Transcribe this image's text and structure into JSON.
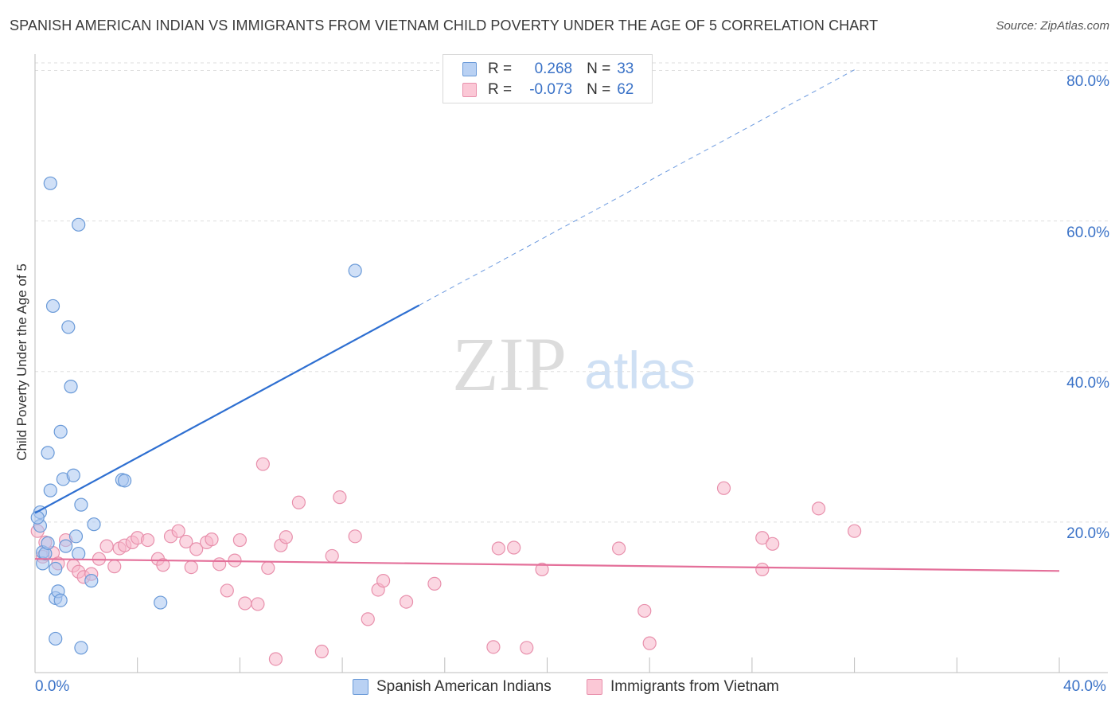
{
  "title": "SPANISH AMERICAN INDIAN VS IMMIGRANTS FROM VIETNAM CHILD POVERTY UNDER THE AGE OF 5 CORRELATION CHART",
  "source": "Source: ZipAtlas.com",
  "watermark": {
    "zip": "ZIP",
    "atlas": "atlas"
  },
  "colors": {
    "blue_fill": "#a9c6f0",
    "blue_stroke": "#6a9ad8",
    "blue_line": "#2e6fd1",
    "pink_fill": "#f7b7ca",
    "pink_stroke": "#e890ac",
    "pink_line": "#e4709a",
    "tick_text": "#3a72c7",
    "grid": "#dedede"
  },
  "legend": {
    "rows": [
      {
        "r_label": "R =",
        "r_value": "0.268",
        "n_label": "N =",
        "n_value": "33"
      },
      {
        "r_label": "R =",
        "r_value": "-0.073",
        "n_label": "N =",
        "n_value": "62"
      }
    ]
  },
  "chart_data": {
    "type": "scatter",
    "title": "SPANISH AMERICAN INDIAN VS IMMIGRANTS FROM VIETNAM CHILD POVERTY UNDER THE AGE OF 5 CORRELATION CHART",
    "xlabel": "",
    "ylabel": "Child Poverty Under the Age of 5",
    "xlim": [
      0,
      40
    ],
    "ylim": [
      0,
      81
    ],
    "x_tick_labels": [
      "0.0%",
      "40.0%"
    ],
    "y_ticks": [
      20,
      40,
      60,
      80
    ],
    "y_tick_labels": [
      "20.0%",
      "40.0%",
      "60.0%",
      "80.0%"
    ],
    "grid": true,
    "legend_position": "top-center",
    "series": [
      {
        "name": "Spanish American Indians",
        "color": "#a9c6f0",
        "trend": {
          "x_start": 0,
          "y_start": 21.2,
          "x_solid_end": 15,
          "x_dashed_end": 32,
          "slope": 1.84
        },
        "points": [
          [
            0.2,
            19.5
          ],
          [
            0.2,
            21.3
          ],
          [
            0.3,
            16
          ],
          [
            0.3,
            14.5
          ],
          [
            0.4,
            15.8
          ],
          [
            0.5,
            17.2
          ],
          [
            0.5,
            29.2
          ],
          [
            0.6,
            24.2
          ],
          [
            0.6,
            65
          ],
          [
            0.7,
            48.7
          ],
          [
            0.8,
            4.5
          ],
          [
            0.8,
            9.9
          ],
          [
            0.8,
            13.8
          ],
          [
            0.9,
            10.8
          ],
          [
            1.0,
            32
          ],
          [
            1.0,
            9.6
          ],
          [
            1.1,
            25.7
          ],
          [
            1.2,
            16.8
          ],
          [
            1.3,
            45.9
          ],
          [
            1.4,
            38
          ],
          [
            1.5,
            26.2
          ],
          [
            1.6,
            18.1
          ],
          [
            1.7,
            59.5
          ],
          [
            1.7,
            15.8
          ],
          [
            1.8,
            3.3
          ],
          [
            1.8,
            22.3
          ],
          [
            2.2,
            12.2
          ],
          [
            2.3,
            19.7
          ],
          [
            3.4,
            25.6
          ],
          [
            3.5,
            25.5
          ],
          [
            4.9,
            9.3
          ],
          [
            12.5,
            53.4
          ],
          [
            0.1,
            20.6
          ]
        ]
      },
      {
        "name": "Immigrants from Vietnam",
        "color": "#f7b7ca",
        "trend": {
          "x_start": 0,
          "y_start": 15.1,
          "x_end": 40,
          "y_end": 13.5
        },
        "points": [
          [
            0.1,
            18.8
          ],
          [
            0.4,
            17.3
          ],
          [
            0.7,
            15.9
          ],
          [
            0.9,
            14.5
          ],
          [
            1.2,
            17.6
          ],
          [
            1.5,
            14.2
          ],
          [
            1.7,
            13.4
          ],
          [
            1.9,
            12.7
          ],
          [
            2.2,
            13.1
          ],
          [
            2.5,
            15.1
          ],
          [
            2.8,
            16.8
          ],
          [
            3.1,
            14.1
          ],
          [
            3.3,
            16.5
          ],
          [
            3.5,
            16.9
          ],
          [
            3.8,
            17.3
          ],
          [
            4.0,
            17.9
          ],
          [
            4.4,
            17.6
          ],
          [
            4.8,
            15.1
          ],
          [
            5.0,
            14.3
          ],
          [
            5.3,
            18.1
          ],
          [
            5.6,
            18.8
          ],
          [
            5.9,
            17.4
          ],
          [
            6.1,
            14
          ],
          [
            6.3,
            16.4
          ],
          [
            6.7,
            17.3
          ],
          [
            6.9,
            17.7
          ],
          [
            7.2,
            14.4
          ],
          [
            7.5,
            10.9
          ],
          [
            7.8,
            14.9
          ],
          [
            8.0,
            17.6
          ],
          [
            8.2,
            9.2
          ],
          [
            8.7,
            9.1
          ],
          [
            8.9,
            27.7
          ],
          [
            9.1,
            13.9
          ],
          [
            9.4,
            1.8
          ],
          [
            9.6,
            16.9
          ],
          [
            9.8,
            18
          ],
          [
            10.3,
            22.6
          ],
          [
            11.2,
            2.8
          ],
          [
            11.6,
            15.5
          ],
          [
            11.9,
            23.3
          ],
          [
            12.5,
            18.1
          ],
          [
            13.0,
            7.1
          ],
          [
            13.4,
            11
          ],
          [
            13.6,
            12.2
          ],
          [
            14.5,
            9.4
          ],
          [
            15.6,
            11.8
          ],
          [
            17.9,
            3.4
          ],
          [
            18.1,
            16.5
          ],
          [
            18.7,
            16.6
          ],
          [
            19.2,
            3.3
          ],
          [
            19.8,
            13.7
          ],
          [
            22.8,
            16.5
          ],
          [
            23.8,
            8.2
          ],
          [
            24.0,
            3.9
          ],
          [
            26.9,
            24.5
          ],
          [
            28.4,
            17.9
          ],
          [
            28.4,
            13.7
          ],
          [
            28.8,
            17.1
          ],
          [
            30.6,
            21.8
          ],
          [
            32.0,
            18.8
          ],
          [
            0.3,
            15.4
          ]
        ]
      }
    ]
  }
}
